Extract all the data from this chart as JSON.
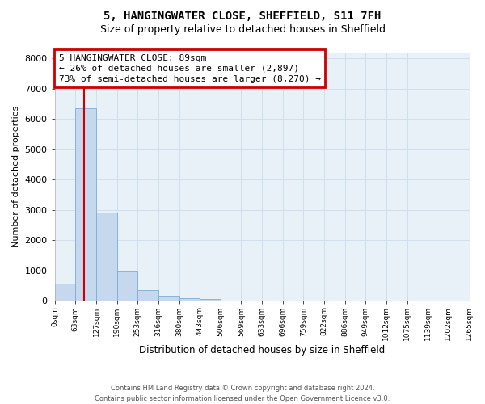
{
  "title1": "5, HANGINGWATER CLOSE, SHEFFIELD, S11 7FH",
  "title2": "Size of property relative to detached houses in Sheffield",
  "xlabel": "Distribution of detached houses by size in Sheffield",
  "ylabel": "Number of detached properties",
  "bar_values": [
    580,
    6370,
    2920,
    970,
    370,
    175,
    100,
    65,
    0,
    0,
    0,
    0,
    0,
    0,
    0,
    0,
    0,
    0,
    0,
    0
  ],
  "tick_labels": [
    "0sqm",
    "63sqm",
    "127sqm",
    "190sqm",
    "253sqm",
    "316sqm",
    "380sqm",
    "443sqm",
    "506sqm",
    "569sqm",
    "633sqm",
    "696sqm",
    "759sqm",
    "822sqm",
    "886sqm",
    "949sqm",
    "1012sqm",
    "1075sqm",
    "1139sqm",
    "1202sqm",
    "1265sqm"
  ],
  "bar_color": "#c5d8ee",
  "bar_edge_color": "#7aaed4",
  "grid_color": "#d0dff0",
  "background_color": "#e8f0f8",
  "vline_color": "#cc0000",
  "annotation_text": "5 HANGINGWATER CLOSE: 89sqm\n← 26% of detached houses are smaller (2,897)\n73% of semi-detached houses are larger (8,270) →",
  "annotation_box_edgecolor": "#cc0000",
  "ylim": [
    0,
    8200
  ],
  "yticks": [
    0,
    1000,
    2000,
    3000,
    4000,
    5000,
    6000,
    7000,
    8000
  ],
  "footnote": "Contains HM Land Registry data © Crown copyright and database right 2024.\nContains public sector information licensed under the Open Government Licence v3.0.",
  "title1_fontsize": 10,
  "title2_fontsize": 9,
  "tick_fontsize": 6.5,
  "ylabel_fontsize": 8,
  "xlabel_fontsize": 8.5,
  "annotation_fontsize": 8,
  "footnote_fontsize": 6
}
